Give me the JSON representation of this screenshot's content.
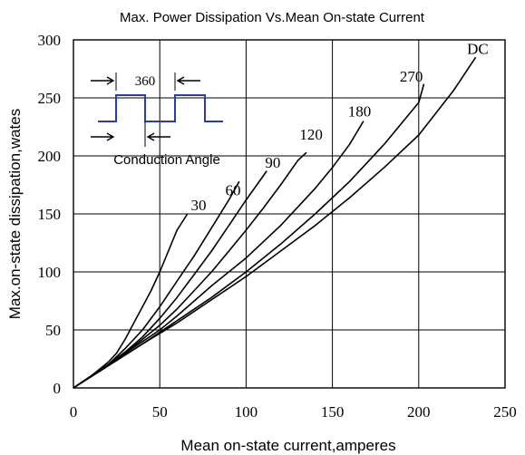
{
  "chart_data": {
    "type": "line",
    "title": "Max. Power Dissipation Vs.Mean On-state Current",
    "xlabel": "Mean on-state current,amperes",
    "ylabel": "Max.on-state dissipation,wates",
    "xlim": [
      0,
      250
    ],
    "ylim": [
      0,
      300
    ],
    "x_ticks": [
      "0",
      "50",
      "100",
      "150",
      "200",
      "250"
    ],
    "y_ticks": [
      "0",
      "50",
      "100",
      "150",
      "200",
      "250",
      "300"
    ],
    "grid": true,
    "series": [
      {
        "name": "30",
        "points": [
          [
            0,
            0
          ],
          [
            10,
            10
          ],
          [
            20,
            22
          ],
          [
            25,
            30
          ],
          [
            30,
            42
          ],
          [
            35,
            56
          ],
          [
            40,
            70
          ],
          [
            45,
            84
          ],
          [
            50,
            100
          ],
          [
            55,
            118
          ],
          [
            60,
            136
          ],
          [
            66,
            150
          ]
        ]
      },
      {
        "name": "60",
        "points": [
          [
            0,
            0
          ],
          [
            10,
            10
          ],
          [
            20,
            20
          ],
          [
            30,
            34
          ],
          [
            40,
            50
          ],
          [
            50,
            70
          ],
          [
            60,
            92
          ],
          [
            70,
            114
          ],
          [
            80,
            138
          ],
          [
            90,
            162
          ],
          [
            96,
            178
          ]
        ]
      },
      {
        "name": "90",
        "points": [
          [
            0,
            0
          ],
          [
            10,
            10
          ],
          [
            20,
            20
          ],
          [
            30,
            31
          ],
          [
            40,
            44
          ],
          [
            50,
            60
          ],
          [
            60,
            78
          ],
          [
            70,
            98
          ],
          [
            80,
            118
          ],
          [
            90,
            140
          ],
          [
            100,
            162
          ],
          [
            112,
            187
          ]
        ]
      },
      {
        "name": "120",
        "points": [
          [
            0,
            0
          ],
          [
            10,
            10
          ],
          [
            20,
            20
          ],
          [
            30,
            30
          ],
          [
            40,
            42
          ],
          [
            50,
            54
          ],
          [
            60,
            68
          ],
          [
            70,
            84
          ],
          [
            80,
            100
          ],
          [
            90,
            118
          ],
          [
            100,
            136
          ],
          [
            110,
            155
          ],
          [
            120,
            175
          ],
          [
            130,
            196
          ],
          [
            135,
            203
          ]
        ]
      },
      {
        "name": "180",
        "points": [
          [
            0,
            0
          ],
          [
            20,
            20
          ],
          [
            40,
            40
          ],
          [
            50,
            50
          ],
          [
            60,
            62
          ],
          [
            80,
            88
          ],
          [
            100,
            112
          ],
          [
            120,
            140
          ],
          [
            140,
            172
          ],
          [
            150,
            190
          ],
          [
            160,
            210
          ],
          [
            168,
            230
          ]
        ]
      },
      {
        "name": "270",
        "points": [
          [
            0,
            0
          ],
          [
            20,
            19
          ],
          [
            40,
            38
          ],
          [
            50,
            48
          ],
          [
            60,
            58
          ],
          [
            80,
            78
          ],
          [
            100,
            100
          ],
          [
            120,
            124
          ],
          [
            140,
            150
          ],
          [
            160,
            178
          ],
          [
            180,
            210
          ],
          [
            200,
            246
          ],
          [
            203,
            262
          ]
        ]
      },
      {
        "name": "DC",
        "points": [
          [
            0,
            0
          ],
          [
            20,
            19
          ],
          [
            40,
            38
          ],
          [
            50,
            47
          ],
          [
            60,
            56
          ],
          [
            80,
            76
          ],
          [
            100,
            96
          ],
          [
            120,
            118
          ],
          [
            140,
            140
          ],
          [
            160,
            164
          ],
          [
            180,
            190
          ],
          [
            200,
            218
          ],
          [
            220,
            256
          ],
          [
            233,
            285
          ]
        ]
      }
    ],
    "series_labels": [
      {
        "text": "30",
        "x": 68,
        "y": 153
      },
      {
        "text": "60",
        "x": 88,
        "y": 166
      },
      {
        "text": "90",
        "x": 111,
        "y": 190
      },
      {
        "text": "120",
        "x": 131,
        "y": 214
      },
      {
        "text": "180",
        "x": 159,
        "y": 234
      },
      {
        "text": "270",
        "x": 189,
        "y": 264
      },
      {
        "text": "DC",
        "x": 228,
        "y": 288
      }
    ],
    "inset": {
      "period_label": "360",
      "caption": "Conduction Angle"
    }
  }
}
